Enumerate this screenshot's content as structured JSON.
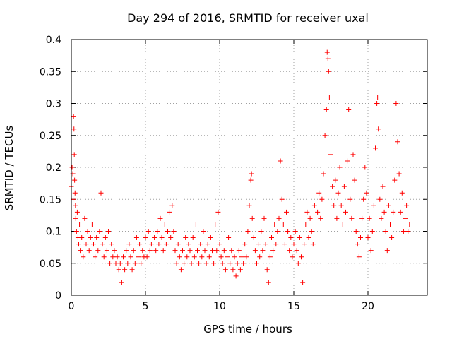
{
  "chart_data": {
    "type": "scatter",
    "title": "Day 294 of 2016, SRMTID for receiver uxal",
    "xlabel": "GPS time / hours",
    "ylabel": "SRMTID / TECUs",
    "xlim": [
      0,
      24
    ],
    "ylim": [
      0,
      0.4
    ],
    "xticks": [
      0,
      5,
      10,
      15,
      20
    ],
    "xtick_labels": [
      "0",
      "5",
      "10",
      "15",
      "20"
    ],
    "yticks": [
      0,
      0.05,
      0.1,
      0.15,
      0.2,
      0.25,
      0.3,
      0.35,
      0.4
    ],
    "ytick_labels": [
      "0",
      "0.05",
      "0.1",
      "0.15",
      "0.2",
      "0.25",
      "0.3",
      "0.35",
      "0.4"
    ],
    "grid": true,
    "marker": "+",
    "series_color": "#ff0000",
    "series": [
      {
        "name": "SRMTID",
        "points": [
          [
            0.0,
            0.17
          ],
          [
            0.05,
            0.2
          ],
          [
            0.1,
            0.19
          ],
          [
            0.12,
            0.15
          ],
          [
            0.15,
            0.28
          ],
          [
            0.18,
            0.26
          ],
          [
            0.2,
            0.22
          ],
          [
            0.22,
            0.18
          ],
          [
            0.25,
            0.16
          ],
          [
            0.28,
            0.14
          ],
          [
            0.3,
            0.12
          ],
          [
            0.35,
            0.1
          ],
          [
            0.4,
            0.13
          ],
          [
            0.45,
            0.09
          ],
          [
            0.5,
            0.08
          ],
          [
            0.55,
            0.11
          ],
          [
            0.6,
            0.07
          ],
          [
            0.7,
            0.09
          ],
          [
            0.8,
            0.06
          ],
          [
            0.9,
            0.12
          ],
          [
            1.0,
            0.08
          ],
          [
            1.1,
            0.1
          ],
          [
            1.2,
            0.07
          ],
          [
            1.3,
            0.09
          ],
          [
            1.4,
            0.11
          ],
          [
            1.5,
            0.08
          ],
          [
            1.6,
            0.06
          ],
          [
            1.7,
            0.09
          ],
          [
            1.8,
            0.07
          ],
          [
            1.9,
            0.1
          ],
          [
            2.0,
            0.16
          ],
          [
            2.1,
            0.08
          ],
          [
            2.2,
            0.06
          ],
          [
            2.3,
            0.09
          ],
          [
            2.4,
            0.07
          ],
          [
            2.5,
            0.1
          ],
          [
            2.6,
            0.05
          ],
          [
            2.7,
            0.08
          ],
          [
            2.8,
            0.06
          ],
          [
            2.9,
            0.07
          ],
          [
            3.0,
            0.05
          ],
          [
            3.1,
            0.06
          ],
          [
            3.2,
            0.04
          ],
          [
            3.3,
            0.05
          ],
          [
            3.4,
            0.02
          ],
          [
            3.5,
            0.06
          ],
          [
            3.6,
            0.04
          ],
          [
            3.7,
            0.07
          ],
          [
            3.8,
            0.05
          ],
          [
            3.9,
            0.08
          ],
          [
            4.0,
            0.06
          ],
          [
            4.1,
            0.04
          ],
          [
            4.2,
            0.07
          ],
          [
            4.3,
            0.05
          ],
          [
            4.4,
            0.09
          ],
          [
            4.5,
            0.06
          ],
          [
            4.6,
            0.08
          ],
          [
            4.7,
            0.05
          ],
          [
            4.8,
            0.07
          ],
          [
            4.9,
            0.06
          ],
          [
            5.0,
            0.09
          ],
          [
            5.1,
            0.06
          ],
          [
            5.2,
            0.1
          ],
          [
            5.3,
            0.07
          ],
          [
            5.4,
            0.08
          ],
          [
            5.5,
            0.11
          ],
          [
            5.6,
            0.09
          ],
          [
            5.7,
            0.07
          ],
          [
            5.8,
            0.1
          ],
          [
            5.9,
            0.08
          ],
          [
            6.0,
            0.12
          ],
          [
            6.1,
            0.09
          ],
          [
            6.2,
            0.07
          ],
          [
            6.3,
            0.11
          ],
          [
            6.4,
            0.08
          ],
          [
            6.5,
            0.1
          ],
          [
            6.6,
            0.13
          ],
          [
            6.7,
            0.09
          ],
          [
            6.8,
            0.14
          ],
          [
            6.9,
            0.1
          ],
          [
            7.0,
            0.07
          ],
          [
            7.1,
            0.05
          ],
          [
            7.2,
            0.08
          ],
          [
            7.3,
            0.06
          ],
          [
            7.4,
            0.04
          ],
          [
            7.5,
            0.07
          ],
          [
            7.6,
            0.05
          ],
          [
            7.7,
            0.09
          ],
          [
            7.8,
            0.06
          ],
          [
            7.9,
            0.08
          ],
          [
            8.0,
            0.07
          ],
          [
            8.1,
            0.05
          ],
          [
            8.2,
            0.09
          ],
          [
            8.3,
            0.06
          ],
          [
            8.4,
            0.11
          ],
          [
            8.5,
            0.07
          ],
          [
            8.6,
            0.05
          ],
          [
            8.7,
            0.08
          ],
          [
            8.8,
            0.06
          ],
          [
            8.9,
            0.1
          ],
          [
            9.0,
            0.07
          ],
          [
            9.1,
            0.05
          ],
          [
            9.2,
            0.08
          ],
          [
            9.3,
            0.06
          ],
          [
            9.4,
            0.09
          ],
          [
            9.5,
            0.07
          ],
          [
            9.6,
            0.05
          ],
          [
            9.7,
            0.11
          ],
          [
            9.8,
            0.07
          ],
          [
            9.9,
            0.13
          ],
          [
            10.0,
            0.08
          ],
          [
            10.1,
            0.06
          ],
          [
            10.2,
            0.05
          ],
          [
            10.3,
            0.07
          ],
          [
            10.4,
            0.04
          ],
          [
            10.5,
            0.06
          ],
          [
            10.6,
            0.09
          ],
          [
            10.7,
            0.05
          ],
          [
            10.8,
            0.07
          ],
          [
            10.9,
            0.04
          ],
          [
            11.0,
            0.06
          ],
          [
            11.1,
            0.03
          ],
          [
            11.2,
            0.05
          ],
          [
            11.3,
            0.07
          ],
          [
            11.4,
            0.04
          ],
          [
            11.5,
            0.06
          ],
          [
            11.6,
            0.05
          ],
          [
            11.7,
            0.08
          ],
          [
            11.8,
            0.06
          ],
          [
            11.9,
            0.1
          ],
          [
            12.0,
            0.14
          ],
          [
            12.1,
            0.18
          ],
          [
            12.15,
            0.19
          ],
          [
            12.2,
            0.12
          ],
          [
            12.3,
            0.09
          ],
          [
            12.4,
            0.07
          ],
          [
            12.5,
            0.05
          ],
          [
            12.6,
            0.08
          ],
          [
            12.7,
            0.06
          ],
          [
            12.8,
            0.1
          ],
          [
            12.9,
            0.07
          ],
          [
            13.0,
            0.12
          ],
          [
            13.1,
            0.08
          ],
          [
            13.2,
            0.04
          ],
          [
            13.3,
            0.02
          ],
          [
            13.4,
            0.06
          ],
          [
            13.5,
            0.09
          ],
          [
            13.6,
            0.07
          ],
          [
            13.7,
            0.11
          ],
          [
            13.8,
            0.08
          ],
          [
            13.9,
            0.1
          ],
          [
            14.0,
            0.12
          ],
          [
            14.1,
            0.21
          ],
          [
            14.2,
            0.15
          ],
          [
            14.3,
            0.11
          ],
          [
            14.4,
            0.08
          ],
          [
            14.5,
            0.13
          ],
          [
            14.6,
            0.1
          ],
          [
            14.7,
            0.07
          ],
          [
            14.8,
            0.09
          ],
          [
            14.9,
            0.06
          ],
          [
            15.0,
            0.08
          ],
          [
            15.1,
            0.1
          ],
          [
            15.2,
            0.07
          ],
          [
            15.3,
            0.05
          ],
          [
            15.4,
            0.09
          ],
          [
            15.5,
            0.06
          ],
          [
            15.6,
            0.02
          ],
          [
            15.7,
            0.08
          ],
          [
            15.8,
            0.11
          ],
          [
            15.9,
            0.13
          ],
          [
            16.0,
            0.09
          ],
          [
            16.1,
            0.12
          ],
          [
            16.2,
            0.1
          ],
          [
            16.3,
            0.08
          ],
          [
            16.4,
            0.14
          ],
          [
            16.5,
            0.11
          ],
          [
            16.6,
            0.13
          ],
          [
            16.7,
            0.16
          ],
          [
            16.8,
            0.12
          ],
          [
            16.9,
            0.15
          ],
          [
            17.0,
            0.19
          ],
          [
            17.1,
            0.25
          ],
          [
            17.2,
            0.29
          ],
          [
            17.25,
            0.38
          ],
          [
            17.3,
            0.37
          ],
          [
            17.35,
            0.35
          ],
          [
            17.4,
            0.31
          ],
          [
            17.5,
            0.22
          ],
          [
            17.6,
            0.17
          ],
          [
            17.7,
            0.14
          ],
          [
            17.8,
            0.18
          ],
          [
            17.9,
            0.12
          ],
          [
            18.0,
            0.16
          ],
          [
            18.1,
            0.2
          ],
          [
            18.2,
            0.14
          ],
          [
            18.3,
            0.11
          ],
          [
            18.4,
            0.17
          ],
          [
            18.5,
            0.13
          ],
          [
            18.6,
            0.21
          ],
          [
            18.7,
            0.29
          ],
          [
            18.8,
            0.15
          ],
          [
            18.9,
            0.12
          ],
          [
            19.0,
            0.22
          ],
          [
            19.1,
            0.18
          ],
          [
            19.2,
            0.1
          ],
          [
            19.3,
            0.08
          ],
          [
            19.4,
            0.06
          ],
          [
            19.5,
            0.09
          ],
          [
            19.6,
            0.12
          ],
          [
            19.7,
            0.15
          ],
          [
            19.8,
            0.2
          ],
          [
            19.9,
            0.16
          ],
          [
            20.0,
            0.09
          ],
          [
            20.1,
            0.12
          ],
          [
            20.2,
            0.07
          ],
          [
            20.3,
            0.1
          ],
          [
            20.4,
            0.14
          ],
          [
            20.5,
            0.23
          ],
          [
            20.6,
            0.3
          ],
          [
            20.65,
            0.31
          ],
          [
            20.7,
            0.26
          ],
          [
            20.8,
            0.15
          ],
          [
            20.9,
            0.12
          ],
          [
            21.0,
            0.17
          ],
          [
            21.1,
            0.13
          ],
          [
            21.2,
            0.1
          ],
          [
            21.3,
            0.07
          ],
          [
            21.4,
            0.14
          ],
          [
            21.5,
            0.11
          ],
          [
            21.6,
            0.09
          ],
          [
            21.7,
            0.13
          ],
          [
            21.8,
            0.18
          ],
          [
            21.9,
            0.3
          ],
          [
            22.0,
            0.24
          ],
          [
            22.1,
            0.19
          ],
          [
            22.2,
            0.13
          ],
          [
            22.3,
            0.16
          ],
          [
            22.4,
            0.1
          ],
          [
            22.5,
            0.12
          ],
          [
            22.6,
            0.14
          ],
          [
            22.7,
            0.1
          ],
          [
            22.8,
            0.11
          ]
        ]
      }
    ]
  }
}
